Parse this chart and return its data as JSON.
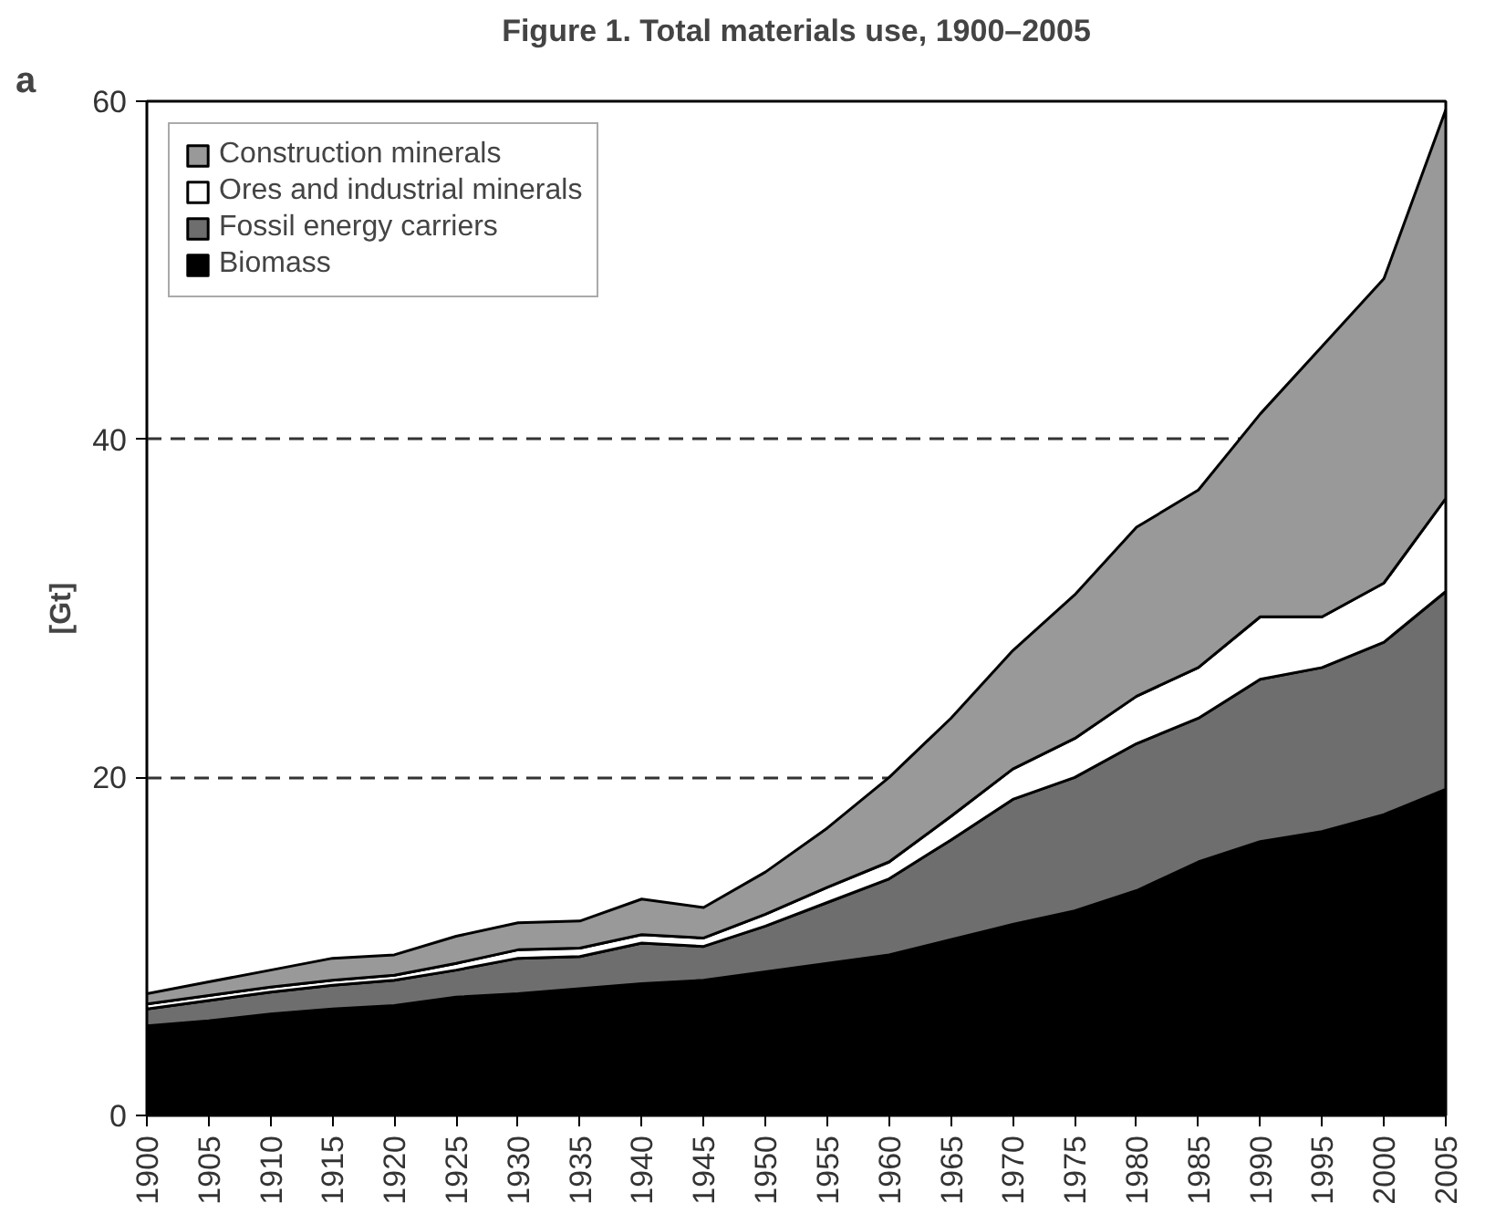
{
  "chart_data": {
    "type": "area",
    "title": "Figure 1. Total materials use, 1900–2005",
    "ylabel": "[Gt]",
    "annotations": [
      "a"
    ],
    "x": [
      1900,
      1905,
      1910,
      1915,
      1920,
      1925,
      1930,
      1935,
      1940,
      1945,
      1950,
      1955,
      1960,
      1965,
      1970,
      1975,
      1980,
      1985,
      1990,
      1995,
      2000,
      2005
    ],
    "stacked": true,
    "series": [
      {
        "name": "Biomass",
        "color": "#000000",
        "values": [
          5.3,
          5.6,
          6.0,
          6.3,
          6.5,
          7.0,
          7.2,
          7.5,
          7.8,
          8.0,
          8.5,
          9.0,
          9.5,
          10.4,
          11.3,
          12.1,
          13.3,
          15.0,
          16.2,
          16.8,
          17.8,
          19.3
        ]
      },
      {
        "name": "Fossil energy carriers",
        "color": "#6e6e6e",
        "values": [
          1.0,
          1.2,
          1.3,
          1.4,
          1.5,
          1.6,
          2.1,
          1.9,
          2.4,
          2.0,
          2.7,
          3.6,
          4.5,
          5.9,
          7.4,
          7.9,
          8.7,
          8.5,
          9.6,
          9.7,
          10.2,
          11.7
        ]
      },
      {
        "name": "Ores and industrial minerals",
        "color": "#ffffff",
        "values": [
          0.3,
          0.3,
          0.3,
          0.3,
          0.3,
          0.4,
          0.5,
          0.5,
          0.5,
          0.5,
          0.7,
          0.9,
          1.0,
          1.4,
          1.8,
          2.3,
          2.8,
          3.0,
          3.7,
          3.0,
          3.5,
          5.5
        ]
      },
      {
        "name": "Construction minerals",
        "color": "#999999",
        "values": [
          0.6,
          0.8,
          1.0,
          1.3,
          1.2,
          1.6,
          1.6,
          1.6,
          2.1,
          1.8,
          2.5,
          3.5,
          5.0,
          5.8,
          7.0,
          8.5,
          10.0,
          10.5,
          12.0,
          16.0,
          18.0,
          23.0
        ]
      }
    ],
    "xlim": [
      1900,
      2005
    ],
    "xticks": [
      1900,
      1905,
      1910,
      1915,
      1920,
      1925,
      1930,
      1935,
      1940,
      1945,
      1950,
      1955,
      1960,
      1965,
      1970,
      1975,
      1980,
      1985,
      1990,
      1995,
      2000,
      2005
    ],
    "ylim": [
      0,
      60
    ],
    "yticks": [
      0,
      20,
      40,
      60
    ],
    "grid": "y",
    "legend": "top left"
  }
}
